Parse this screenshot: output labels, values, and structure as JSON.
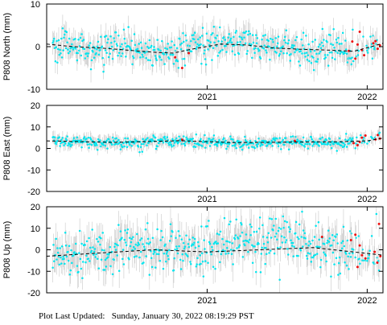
{
  "footer": {
    "label": "Plot Last Updated:",
    "timestamp": "Sunday, January 30, 2022 08:19:29 PST"
  },
  "colors": {
    "points": "#00e5ee",
    "recent_points": "#ee1111",
    "error_bars": "#c8c8c8",
    "model": "#000000",
    "frame": "#000000"
  },
  "chart_data": [
    {
      "type": "scatter",
      "ylabel": "P808 North (mm)",
      "x_range": [
        "2020-01-01",
        "2022-02-06"
      ],
      "ylim": [
        -10,
        10
      ],
      "yticks": [
        -10,
        0,
        10
      ],
      "xticks": [
        {
          "date": "2021-01-01",
          "label": "2021"
        },
        {
          "date": "2022-01-01",
          "label": "2022"
        }
      ],
      "grid": false,
      "series": [
        {
          "role": "daily_positions",
          "color": "#00e5ee",
          "scatter": 1.8,
          "error": 2.3,
          "points": [
            [
              "2020-01-15",
              0.5
            ],
            [
              "2020-03-01",
              -0.3
            ],
            [
              "2020-05-01",
              -0.5
            ],
            [
              "2020-07-01",
              -0.4
            ],
            [
              "2020-09-01",
              -1.6
            ],
            [
              "2020-10-15",
              -2.0
            ],
            [
              "2020-12-01",
              0.3
            ],
            [
              "2021-02-01",
              1.3
            ],
            [
              "2021-04-01",
              1.0
            ],
            [
              "2021-06-01",
              -0.3
            ],
            [
              "2021-08-01",
              -0.6
            ],
            [
              "2021-10-01",
              -0.8
            ],
            [
              "2021-12-01",
              -1.0
            ],
            [
              "2022-01-25",
              0.7
            ]
          ]
        },
        {
          "role": "recent_positions",
          "color": "#ee1111",
          "points": [
            [
              "2020-10-20",
              -2.5
            ],
            [
              "2020-11-05",
              -5.0
            ],
            [
              "2020-11-20",
              -1.5
            ],
            [
              "2021-11-20",
              -1.0
            ],
            [
              "2021-11-28",
              1.2
            ],
            [
              "2021-12-05",
              -2.8
            ],
            [
              "2021-12-10",
              0.5
            ],
            [
              "2021-12-15",
              3.5
            ],
            [
              "2021-12-20",
              -0.8
            ],
            [
              "2021-12-25",
              -2.0
            ],
            [
              "2022-01-15",
              0.8
            ],
            [
              "2022-01-20",
              1.3
            ],
            [
              "2022-01-25",
              -0.5
            ],
            [
              "2022-01-30",
              0.3
            ]
          ]
        },
        {
          "role": "model",
          "style": "dashed",
          "color": "#000000",
          "points": [
            [
              "2020-01-01",
              0.6
            ],
            [
              "2020-03-01",
              0.0
            ],
            [
              "2020-05-01",
              -0.3
            ],
            [
              "2020-07-01",
              -0.8
            ],
            [
              "2020-09-01",
              -1.3
            ],
            [
              "2020-10-15",
              -1.5
            ],
            [
              "2020-12-01",
              -0.5
            ],
            [
              "2021-02-01",
              0.6
            ],
            [
              "2021-04-01",
              0.4
            ],
            [
              "2021-06-01",
              -0.3
            ],
            [
              "2021-08-01",
              -0.6
            ],
            [
              "2021-10-01",
              -0.8
            ],
            [
              "2021-12-01",
              -1.1
            ],
            [
              "2022-01-10",
              0.0
            ],
            [
              "2022-02-06",
              0.8
            ]
          ]
        }
      ]
    },
    {
      "type": "scatter",
      "ylabel": "P808 East (mm)",
      "x_range": [
        "2020-01-01",
        "2022-02-06"
      ],
      "ylim": [
        -20,
        20
      ],
      "yticks": [
        -20,
        -10,
        0,
        10,
        20
      ],
      "xticks": [
        {
          "date": "2021-01-01",
          "label": "2021"
        },
        {
          "date": "2022-01-01",
          "label": "2022"
        }
      ],
      "grid": false,
      "series": [
        {
          "role": "daily_positions",
          "color": "#00e5ee",
          "scatter": 1.4,
          "error": 2.4,
          "points": [
            [
              "2020-01-15",
              3.8
            ],
            [
              "2020-04-01",
              3.0
            ],
            [
              "2020-07-01",
              2.6
            ],
            [
              "2020-10-01",
              3.6
            ],
            [
              "2021-01-01",
              2.8
            ],
            [
              "2021-04-01",
              2.5
            ],
            [
              "2021-07-01",
              2.6
            ],
            [
              "2021-10-01",
              3.0
            ],
            [
              "2022-01-01",
              3.6
            ],
            [
              "2022-01-30",
              5.5
            ]
          ]
        },
        {
          "role": "recent_positions",
          "color": "#ee1111",
          "points": [
            [
              "2020-11-05",
              4.0
            ],
            [
              "2021-07-20",
              3.5
            ],
            [
              "2021-12-01",
              2.5
            ],
            [
              "2021-12-10",
              1.5
            ],
            [
              "2021-12-15",
              3.0
            ],
            [
              "2021-12-20",
              5.0
            ],
            [
              "2021-12-28",
              6.0
            ],
            [
              "2022-01-20",
              4.2
            ],
            [
              "2022-01-25",
              6.2
            ],
            [
              "2022-01-30",
              4.6
            ]
          ]
        },
        {
          "role": "model",
          "style": "dashed",
          "color": "#000000",
          "points": [
            [
              "2020-01-01",
              3.5
            ],
            [
              "2020-06-01",
              2.8
            ],
            [
              "2020-11-01",
              3.6
            ],
            [
              "2021-03-01",
              2.7
            ],
            [
              "2021-07-01",
              2.9
            ],
            [
              "2021-11-01",
              3.1
            ],
            [
              "2022-01-01",
              3.5
            ],
            [
              "2022-02-06",
              4.8
            ]
          ]
        }
      ]
    },
    {
      "type": "scatter",
      "ylabel": "P808 Up (mm)",
      "x_range": [
        "2020-01-01",
        "2022-02-06"
      ],
      "ylim": [
        -20,
        20
      ],
      "yticks": [
        -20,
        -10,
        0,
        10,
        20
      ],
      "xticks": [
        {
          "date": "2021-01-01",
          "label": "2021"
        },
        {
          "date": "2022-01-01",
          "label": "2022"
        }
      ],
      "grid": false,
      "series": [
        {
          "role": "daily_positions",
          "color": "#00e5ee",
          "scatter": 5.5,
          "error": 6.0,
          "points": [
            [
              "2020-01-15",
              -2.0
            ],
            [
              "2020-04-01",
              -1.0
            ],
            [
              "2020-07-01",
              -0.5
            ],
            [
              "2020-10-01",
              1.0
            ],
            [
              "2021-01-01",
              1.5
            ],
            [
              "2021-04-01",
              3.0
            ],
            [
              "2021-07-01",
              6.0
            ],
            [
              "2021-10-01",
              0.5
            ],
            [
              "2022-01-01",
              -1.5
            ],
            [
              "2022-01-30",
              -1.0
            ]
          ]
        },
        {
          "role": "recent_positions",
          "color": "#ee1111",
          "points": [
            [
              "2021-09-20",
              6.0
            ],
            [
              "2021-11-25",
              4.5
            ],
            [
              "2021-12-05",
              7.0
            ],
            [
              "2021-12-10",
              -8.0
            ],
            [
              "2021-12-15",
              2.0
            ],
            [
              "2021-12-20",
              -2.5
            ],
            [
              "2021-12-28",
              -4.0
            ],
            [
              "2022-01-18",
              -1.0
            ],
            [
              "2022-01-24",
              -6.0
            ],
            [
              "2022-01-28",
              12.0
            ],
            [
              "2022-01-31",
              -3.0
            ]
          ]
        },
        {
          "role": "model",
          "style": "dashed",
          "color": "#000000",
          "points": [
            [
              "2020-01-01",
              -3.0
            ],
            [
              "2020-05-01",
              -1.5
            ],
            [
              "2020-09-01",
              0.0
            ],
            [
              "2021-01-01",
              -1.0
            ],
            [
              "2021-05-01",
              0.0
            ],
            [
              "2021-09-01",
              1.0
            ],
            [
              "2021-12-01",
              -1.0
            ],
            [
              "2022-02-06",
              -2.5
            ]
          ]
        }
      ]
    }
  ]
}
